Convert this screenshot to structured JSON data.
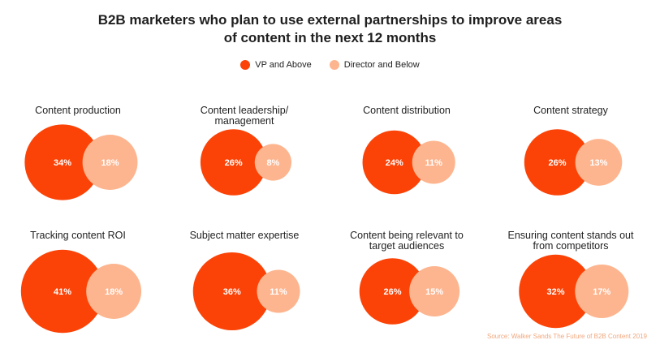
{
  "title_line1": "B2B marketers who plan to use external partnerships to improve areas",
  "title_line2": "of content in the next 12 months",
  "source": "Source: Walker Sands The Future of B2B Content 2019",
  "colors": {
    "vp": "#fb4307",
    "director": "#fdb58f",
    "director_text": "#f3a47a"
  },
  "chart_data": {
    "type": "bubble",
    "series": [
      {
        "name": "VP and Above"
      },
      {
        "name": "Director and Below"
      }
    ],
    "categories": [
      {
        "label": [
          "Content production"
        ],
        "vp": 34,
        "director": 18
      },
      {
        "label": [
          "Content leadership/",
          "management"
        ],
        "vp": 26,
        "director": 8
      },
      {
        "label": [
          "Content distribution"
        ],
        "vp": 24,
        "director": 11
      },
      {
        "label": [
          "Content strategy"
        ],
        "vp": 26,
        "director": 13
      },
      {
        "label": [
          "Tracking content ROI"
        ],
        "vp": 41,
        "director": 18
      },
      {
        "label": [
          "Subject matter expertise"
        ],
        "vp": 36,
        "director": 11
      },
      {
        "label": [
          "Content being relevant to",
          "target audiences"
        ],
        "vp": 26,
        "director": 15
      },
      {
        "label": [
          "Ensuring content stands out",
          "from competitors"
        ],
        "vp": 32,
        "director": 17
      }
    ]
  }
}
